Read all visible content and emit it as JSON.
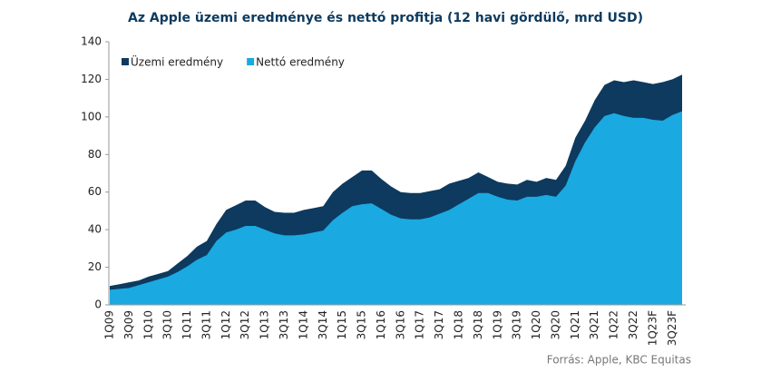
{
  "chart_data": {
    "type": "area",
    "title": "Az Apple üzemi eredménye és nettó profitja (12 havi gördülő, mrd USD)",
    "source": "Forrás: Apple, KBC Equitas",
    "categories": [
      "1Q09",
      null,
      "3Q09",
      null,
      "1Q10",
      null,
      "3Q10",
      null,
      "1Q11",
      null,
      "3Q11",
      null,
      "1Q12",
      null,
      "3Q12",
      null,
      "1Q13",
      null,
      "3Q13",
      null,
      "1Q14",
      null,
      "3Q14",
      null,
      "1Q15",
      null,
      "3Q15",
      null,
      "1Q16",
      null,
      "3Q16",
      null,
      "1Q17",
      null,
      "3Q17",
      null,
      "1Q18",
      null,
      "3Q18",
      null,
      "1Q19",
      null,
      "3Q19",
      null,
      "1Q20",
      null,
      "3Q20",
      null,
      "1Q21",
      null,
      "3Q21",
      null,
      "1Q22",
      null,
      "3Q22",
      null,
      "1Q23F",
      null,
      "3Q23F",
      null
    ],
    "series": [
      {
        "name": "Üzemi eredmény",
        "color": "#0d3a5e",
        "values": [
          10,
          11,
          12,
          13,
          15,
          16.5,
          18,
          22,
          26,
          31,
          34,
          43,
          50.5,
          53,
          55.5,
          55.5,
          52,
          49.5,
          49,
          49,
          50.5,
          51.5,
          52.5,
          60,
          64.5,
          68,
          71.5,
          71.5,
          67,
          63,
          60,
          59.5,
          59.5,
          60.5,
          61.5,
          64.5,
          66,
          67.5,
          70.5,
          68,
          65.5,
          64.5,
          64,
          66.5,
          65.5,
          67.5,
          66.5,
          74,
          89,
          98,
          109,
          117,
          119.5,
          118.5,
          119.5,
          118.5,
          117.5,
          118.5,
          120,
          122.5
        ]
      },
      {
        "name": "Nettó eredmény",
        "color": "#1aa9e1",
        "values": [
          8,
          8.5,
          9,
          10.5,
          12,
          13.5,
          15,
          17.5,
          20.5,
          24,
          26.5,
          34,
          38.5,
          40,
          42,
          42,
          40,
          38,
          37,
          37,
          37.5,
          38.5,
          39.5,
          45,
          49,
          52.5,
          53.5,
          54,
          51,
          48,
          46,
          45.5,
          45.5,
          46.5,
          48.5,
          50.5,
          53.5,
          56.5,
          59.5,
          59.5,
          57.5,
          56,
          55.5,
          57.5,
          57.5,
          58.5,
          57.5,
          63.5,
          76.5,
          86.5,
          94.5,
          100.5,
          102,
          100.5,
          99.5,
          99.5,
          98.5,
          98,
          101,
          103
        ]
      }
    ],
    "ylim": [
      0,
      140
    ],
    "yticks": [
      0,
      20,
      40,
      60,
      80,
      100,
      120,
      140
    ],
    "grid": false,
    "legend": "top-left"
  }
}
